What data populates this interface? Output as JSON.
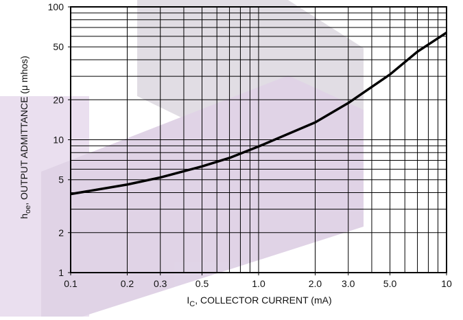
{
  "chart_data": {
    "type": "line",
    "xlabel": {
      "symbol": "I",
      "sub": "C",
      "text": ", COLLECTOR CURRENT (mA)"
    },
    "ylabel": {
      "symbol": "h",
      "sub": "oe",
      "text": ", OUTPUT ADMITTANCE (μ mhos)"
    },
    "x": [
      0.1,
      0.2,
      0.3,
      0.5,
      0.7,
      1.0,
      2.0,
      3.0,
      5.0,
      7.0,
      10
    ],
    "values": [
      3.9,
      4.6,
      5.2,
      6.3,
      7.3,
      8.9,
      13.5,
      18.9,
      31,
      46,
      64
    ],
    "color": "#000000",
    "xscale": "log",
    "yscale": "log",
    "xlim": [
      0.1,
      10
    ],
    "ylim": [
      1,
      100
    ],
    "xticks": [
      0.1,
      0.2,
      0.3,
      0.5,
      {
        "value": 1,
        "label": "1.0"
      },
      {
        "value": 2,
        "label": "2.0"
      },
      {
        "value": 3,
        "label": "3.0"
      },
      {
        "value": 5,
        "label": "5.0"
      },
      10
    ],
    "yticks": [
      1,
      2,
      5,
      10,
      20,
      50,
      100
    ],
    "grid": true,
    "xgrid": [
      0.1,
      0.2,
      0.3,
      0.4,
      0.5,
      0.6,
      0.7,
      0.8,
      0.9,
      1,
      2,
      3,
      4,
      5,
      6,
      7,
      8,
      9,
      10
    ],
    "ygrid": [
      1,
      2,
      3,
      4,
      5,
      6,
      7,
      8,
      9,
      10,
      20,
      30,
      40,
      50,
      60,
      70,
      80,
      90,
      100
    ]
  }
}
